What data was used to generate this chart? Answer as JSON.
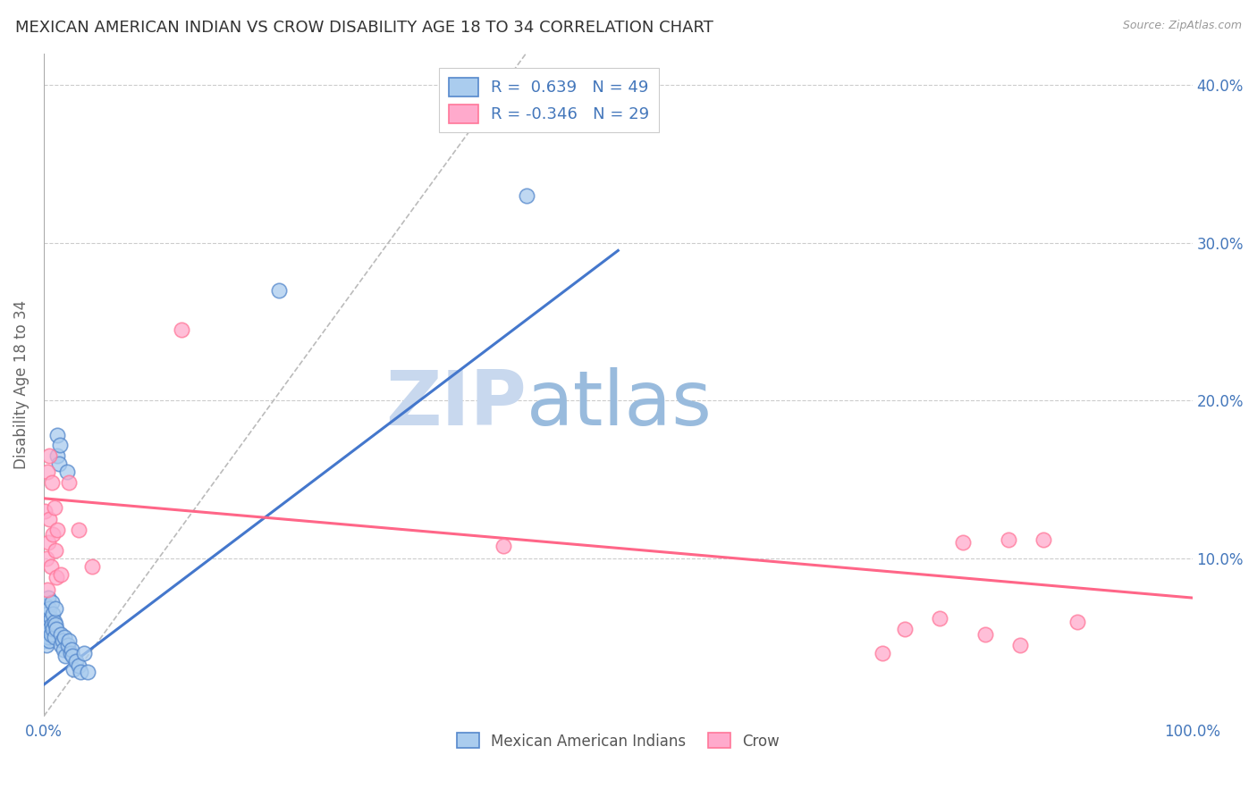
{
  "title": "MEXICAN AMERICAN INDIAN VS CROW DISABILITY AGE 18 TO 34 CORRELATION CHART",
  "source": "Source: ZipAtlas.com",
  "ylabel": "Disability Age 18 to 34",
  "xlim": [
    0.0,
    1.0
  ],
  "ylim": [
    0.0,
    0.42
  ],
  "xticks": [
    0.0,
    0.1,
    0.2,
    0.3,
    0.4,
    0.5,
    0.6,
    0.7,
    0.8,
    0.9,
    1.0
  ],
  "yticks": [
    0.0,
    0.1,
    0.2,
    0.3,
    0.4
  ],
  "legend_r_blue": "0.639",
  "legend_n_blue": "49",
  "legend_r_pink": "-0.346",
  "legend_n_pink": "29",
  "blue_fill": "#AACCEE",
  "pink_fill": "#FFAACC",
  "blue_edge": "#5588CC",
  "pink_edge": "#FF7799",
  "blue_line_color": "#4477CC",
  "pink_line_color": "#FF6688",
  "diagonal_color": "#BBBBBB",
  "blue_scatter": [
    [
      0.001,
      0.055
    ],
    [
      0.001,
      0.048
    ],
    [
      0.002,
      0.062
    ],
    [
      0.002,
      0.045
    ],
    [
      0.002,
      0.07
    ],
    [
      0.003,
      0.058
    ],
    [
      0.003,
      0.052
    ],
    [
      0.003,
      0.065
    ],
    [
      0.004,
      0.05
    ],
    [
      0.004,
      0.06
    ],
    [
      0.004,
      0.075
    ],
    [
      0.005,
      0.055
    ],
    [
      0.005,
      0.068
    ],
    [
      0.005,
      0.048
    ],
    [
      0.006,
      0.052
    ],
    [
      0.006,
      0.062
    ],
    [
      0.007,
      0.058
    ],
    [
      0.007,
      0.072
    ],
    [
      0.008,
      0.055
    ],
    [
      0.008,
      0.065
    ],
    [
      0.009,
      0.06
    ],
    [
      0.009,
      0.05
    ],
    [
      0.01,
      0.058
    ],
    [
      0.01,
      0.068
    ],
    [
      0.011,
      0.055
    ],
    [
      0.012,
      0.165
    ],
    [
      0.012,
      0.178
    ],
    [
      0.013,
      0.16
    ],
    [
      0.014,
      0.172
    ],
    [
      0.015,
      0.052
    ],
    [
      0.015,
      0.045
    ],
    [
      0.016,
      0.048
    ],
    [
      0.017,
      0.042
    ],
    [
      0.018,
      0.05
    ],
    [
      0.019,
      0.038
    ],
    [
      0.02,
      0.155
    ],
    [
      0.021,
      0.045
    ],
    [
      0.022,
      0.048
    ],
    [
      0.023,
      0.04
    ],
    [
      0.024,
      0.042
    ],
    [
      0.025,
      0.038
    ],
    [
      0.026,
      0.03
    ],
    [
      0.028,
      0.035
    ],
    [
      0.03,
      0.032
    ],
    [
      0.032,
      0.028
    ],
    [
      0.035,
      0.04
    ],
    [
      0.038,
      0.028
    ],
    [
      0.205,
      0.27
    ],
    [
      0.42,
      0.33
    ]
  ],
  "pink_scatter": [
    [
      0.001,
      0.13
    ],
    [
      0.002,
      0.1
    ],
    [
      0.003,
      0.155
    ],
    [
      0.003,
      0.08
    ],
    [
      0.004,
      0.11
    ],
    [
      0.005,
      0.125
    ],
    [
      0.005,
      0.165
    ],
    [
      0.006,
      0.095
    ],
    [
      0.007,
      0.148
    ],
    [
      0.008,
      0.115
    ],
    [
      0.009,
      0.132
    ],
    [
      0.01,
      0.105
    ],
    [
      0.011,
      0.088
    ],
    [
      0.012,
      0.118
    ],
    [
      0.015,
      0.09
    ],
    [
      0.022,
      0.148
    ],
    [
      0.03,
      0.118
    ],
    [
      0.042,
      0.095
    ],
    [
      0.12,
      0.245
    ],
    [
      0.4,
      0.108
    ],
    [
      0.73,
      0.04
    ],
    [
      0.75,
      0.055
    ],
    [
      0.78,
      0.062
    ],
    [
      0.8,
      0.11
    ],
    [
      0.82,
      0.052
    ],
    [
      0.84,
      0.112
    ],
    [
      0.85,
      0.045
    ],
    [
      0.87,
      0.112
    ],
    [
      0.9,
      0.06
    ]
  ],
  "blue_line": [
    [
      0.0,
      0.02
    ],
    [
      0.5,
      0.295
    ]
  ],
  "pink_line": [
    [
      0.0,
      0.138
    ],
    [
      1.0,
      0.075
    ]
  ],
  "diagonal_line": [
    [
      0.0,
      0.0
    ],
    [
      1.0,
      1.0
    ]
  ],
  "watermark_zip": "ZIP",
  "watermark_atlas": "atlas",
  "figsize": [
    14.06,
    8.92
  ],
  "dpi": 100
}
